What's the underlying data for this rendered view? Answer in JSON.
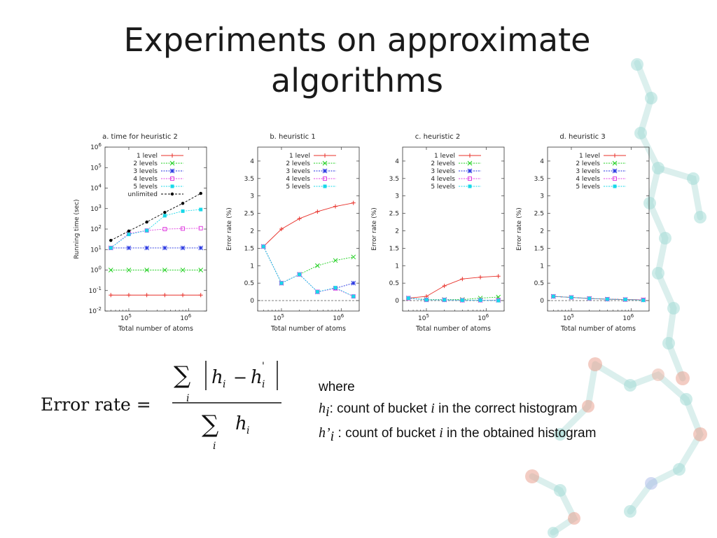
{
  "slide": {
    "title_line1": "Experiments on approximate",
    "title_line2": "algorithms"
  },
  "formula": {
    "label": "Error rate =",
    "sum_symbol": "∑",
    "index": "i",
    "numerator_terms": [
      "h",
      "i",
      "−",
      "h",
      "'",
      "i"
    ],
    "denominator_terms": [
      "h",
      "i"
    ]
  },
  "notes": {
    "where": "where",
    "line1_var": "h",
    "line1_sub": "i",
    "line1_text": ": count of bucket ",
    "line1_i": "i",
    "line1_rest": " in the correct histogram",
    "line2_var": "h’",
    "line2_sub": "i",
    "line2_text": " : count of bucket ",
    "line2_i": "i",
    "line2_rest": " in the obtained histogram"
  },
  "colors": {
    "1 level": "#e8312a",
    "2 levels": "#22d022",
    "3 levels": "#1f2ee0",
    "4 levels": "#e040e0",
    "5 levels": "#18d8e8",
    "unlimited": "#000000"
  },
  "chart_data": [
    {
      "type": "line",
      "title": "a. time for heuristic 2",
      "xlabel": "Total number of atoms",
      "ylabel": "Running time (sec)",
      "xscale": "log",
      "yscale": "log",
      "xlim": [
        40000,
        2000000
      ],
      "ylim": [
        0.01,
        1000000
      ],
      "x": [
        50000,
        100000,
        200000,
        400000,
        800000,
        1600000
      ],
      "xticks": [
        {
          "v": 100000,
          "base": "10",
          "exp": "5"
        },
        {
          "v": 1000000,
          "base": "10",
          "exp": "6"
        }
      ],
      "yticks": [
        {
          "v": 0.01,
          "base": "10",
          "exp": "-2"
        },
        {
          "v": 0.1,
          "base": "10",
          "exp": "-1"
        },
        {
          "v": 1,
          "base": "10",
          "exp": "0"
        },
        {
          "v": 10,
          "base": "10",
          "exp": "1"
        },
        {
          "v": 100,
          "base": "10",
          "exp": "2"
        },
        {
          "v": 1000,
          "base": "10",
          "exp": "3"
        },
        {
          "v": 10000,
          "base": "10",
          "exp": "4"
        },
        {
          "v": 100000,
          "base": "10",
          "exp": "5"
        },
        {
          "v": 1000000,
          "base": "10",
          "exp": "6"
        }
      ],
      "legend_position": "top-right",
      "series": [
        {
          "name": "1 level",
          "values": [
            0.06,
            0.06,
            0.06,
            0.06,
            0.06,
            0.06
          ],
          "marker": "plus"
        },
        {
          "name": "2 levels",
          "values": [
            1.0,
            1.0,
            1.0,
            1.0,
            1.0,
            1.0
          ],
          "marker": "x"
        },
        {
          "name": "3 levels",
          "values": [
            12,
            12,
            12,
            12,
            12,
            12
          ],
          "marker": "star"
        },
        {
          "name": "4 levels",
          "values": [
            12,
            60,
            85,
            100,
            105,
            110
          ],
          "marker": "open-square"
        },
        {
          "name": "5 levels",
          "values": [
            12,
            55,
            85,
            450,
            750,
            900
          ],
          "marker": "filled-square"
        },
        {
          "name": "unlimited",
          "values": [
            28,
            80,
            220,
            650,
            1800,
            5500
          ],
          "marker": "dot"
        }
      ]
    },
    {
      "type": "line",
      "title": "b. heuristic 1",
      "xlabel": "Total number of atoms",
      "ylabel": "Error rate (%)",
      "xscale": "log",
      "yscale": "linear",
      "xlim": [
        40000,
        2000000
      ],
      "ylim": [
        -0.3,
        4.4
      ],
      "x": [
        50000,
        100000,
        200000,
        400000,
        800000,
        1600000
      ],
      "xticks": [
        {
          "v": 100000,
          "base": "10",
          "exp": "5"
        },
        {
          "v": 1000000,
          "base": "10",
          "exp": "6"
        }
      ],
      "yticks": [
        {
          "v": 0,
          "label": "0"
        },
        {
          "v": 0.5,
          "label": "0.5"
        },
        {
          "v": 1,
          "label": "1"
        },
        {
          "v": 1.5,
          "label": "1.5"
        },
        {
          "v": 2,
          "label": "2"
        },
        {
          "v": 2.5,
          "label": "2.5"
        },
        {
          "v": 3,
          "label": "3"
        },
        {
          "v": 3.5,
          "label": "3.5"
        },
        {
          "v": 4,
          "label": "4"
        }
      ],
      "zero_line": true,
      "legend_position": "top-right",
      "series": [
        {
          "name": "1 level",
          "values": [
            1.55,
            2.05,
            2.35,
            2.55,
            2.7,
            2.8
          ],
          "marker": "plus"
        },
        {
          "name": "2 levels",
          "values": [
            1.55,
            0.5,
            0.75,
            1.0,
            1.15,
            1.25
          ],
          "marker": "x"
        },
        {
          "name": "3 levels",
          "values": [
            1.55,
            0.5,
            0.75,
            0.25,
            0.35,
            0.5
          ],
          "marker": "star"
        },
        {
          "name": "4 levels",
          "values": [
            1.55,
            0.5,
            0.75,
            0.25,
            0.35,
            0.12
          ],
          "marker": "open-square"
        },
        {
          "name": "5 levels",
          "values": [
            1.55,
            0.5,
            0.75,
            0.25,
            0.37,
            0.12
          ],
          "marker": "filled-square"
        }
      ]
    },
    {
      "type": "line",
      "title": "c. heuristic 2",
      "xlabel": "Total number of atoms",
      "ylabel": "Error rate (%)",
      "xscale": "log",
      "yscale": "linear",
      "xlim": [
        40000,
        2000000
      ],
      "ylim": [
        -0.3,
        4.4
      ],
      "x": [
        50000,
        100000,
        200000,
        400000,
        800000,
        1600000
      ],
      "xticks": [
        {
          "v": 100000,
          "base": "10",
          "exp": "5"
        },
        {
          "v": 1000000,
          "base": "10",
          "exp": "6"
        }
      ],
      "yticks": [
        {
          "v": 0,
          "label": "0"
        },
        {
          "v": 0.5,
          "label": "0.5"
        },
        {
          "v": 1,
          "label": "1"
        },
        {
          "v": 1.5,
          "label": "1.5"
        },
        {
          "v": 2,
          "label": "2"
        },
        {
          "v": 2.5,
          "label": "2.5"
        },
        {
          "v": 3,
          "label": "3"
        },
        {
          "v": 3.5,
          "label": "3.5"
        },
        {
          "v": 4,
          "label": "4"
        }
      ],
      "zero_line": true,
      "legend_position": "top-right",
      "series": [
        {
          "name": "1 level",
          "values": [
            0.07,
            0.12,
            0.42,
            0.62,
            0.67,
            0.7
          ],
          "marker": "plus"
        },
        {
          "name": "2 levels",
          "values": [
            0.07,
            0.03,
            0.03,
            0.03,
            0.07,
            0.1
          ],
          "marker": "x"
        },
        {
          "name": "3 levels",
          "values": [
            0.07,
            0.02,
            0.02,
            0.01,
            0.01,
            0.01
          ],
          "marker": "star"
        },
        {
          "name": "4 levels",
          "values": [
            0.07,
            0.02,
            0.02,
            0.01,
            0.01,
            0.01
          ],
          "marker": "open-square"
        },
        {
          "name": "5 levels",
          "values": [
            0.07,
            0.02,
            0.02,
            0.01,
            0.01,
            0.0
          ],
          "marker": "filled-square"
        }
      ]
    },
    {
      "type": "line",
      "title": "d. heuristic 3",
      "xlabel": "Total number of atoms",
      "ylabel": "Error rate (%)",
      "xscale": "log",
      "yscale": "linear",
      "xlim": [
        40000,
        2000000
      ],
      "ylim": [
        -0.3,
        4.4
      ],
      "x": [
        50000,
        100000,
        200000,
        400000,
        800000,
        1600000
      ],
      "xticks": [
        {
          "v": 100000,
          "base": "10",
          "exp": "5"
        },
        {
          "v": 1000000,
          "base": "10",
          "exp": "6"
        }
      ],
      "yticks": [
        {
          "v": 0,
          "label": "0"
        },
        {
          "v": 0.5,
          "label": "0.5"
        },
        {
          "v": 1,
          "label": "1"
        },
        {
          "v": 1.5,
          "label": "1.5"
        },
        {
          "v": 2,
          "label": "2"
        },
        {
          "v": 2.5,
          "label": "2.5"
        },
        {
          "v": 3,
          "label": "3"
        },
        {
          "v": 3.5,
          "label": "3.5"
        },
        {
          "v": 4,
          "label": "4"
        }
      ],
      "zero_line": true,
      "legend_position": "top-right",
      "series": [
        {
          "name": "1 level",
          "values": [
            0.12,
            0.09,
            0.06,
            0.04,
            0.03,
            0.02
          ],
          "marker": "plus"
        },
        {
          "name": "2 levels",
          "values": [
            0.12,
            0.09,
            0.06,
            0.04,
            0.03,
            0.02
          ],
          "marker": "x"
        },
        {
          "name": "3 levels",
          "values": [
            0.12,
            0.09,
            0.06,
            0.04,
            0.03,
            0.02
          ],
          "marker": "star"
        },
        {
          "name": "4 levels",
          "values": [
            0.12,
            0.09,
            0.06,
            0.04,
            0.03,
            0.02
          ],
          "marker": "open-square"
        },
        {
          "name": "5 levels",
          "values": [
            0.12,
            0.09,
            0.06,
            0.04,
            0.03,
            0.01
          ],
          "marker": "filled-square"
        }
      ]
    }
  ]
}
